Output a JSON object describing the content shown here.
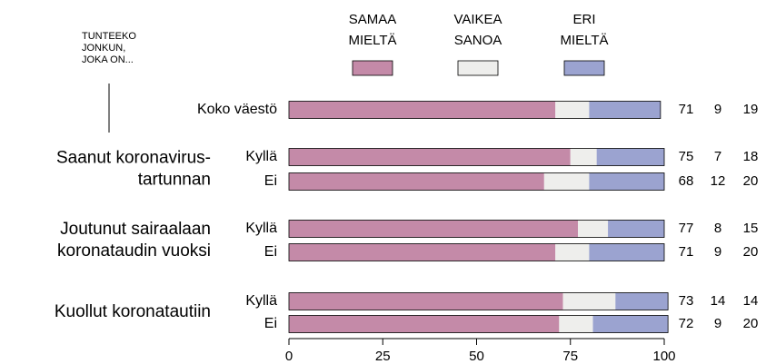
{
  "chart_data": {
    "type": "bar",
    "orientation": "horizontal",
    "stacked": true,
    "note": [
      "TUNTEEKO",
      "JONKUN,",
      "JOKA ON..."
    ],
    "categories": [
      "Koko väestö",
      "Kyllä",
      "Ei",
      "Kyllä",
      "Ei",
      "Kyllä",
      "Ei"
    ],
    "groups": [
      {
        "label": [
          "Saanut koronavirus-",
          "tartunnan"
        ]
      },
      {
        "label": [
          "Joutunut sairaalaan",
          "koronataudin vuoksi"
        ]
      },
      {
        "label": [
          "Kuollut koronatautiin"
        ]
      }
    ],
    "series": [
      {
        "name": "SAMAA MIELTÄ",
        "color": "#c48aa8",
        "values": [
          71,
          75,
          68,
          77,
          71,
          73,
          72
        ]
      },
      {
        "name": "VAIKEA SANOA",
        "color": "#eeeeec",
        "values": [
          9,
          7,
          12,
          8,
          9,
          14,
          9
        ]
      },
      {
        "name": "ERI MIELTÄ",
        "color": "#9ba3d0",
        "values": [
          19,
          18,
          20,
          15,
          20,
          14,
          20
        ]
      }
    ],
    "xlim": [
      0,
      100
    ],
    "xticks": [
      0,
      25,
      50,
      75,
      100
    ]
  }
}
